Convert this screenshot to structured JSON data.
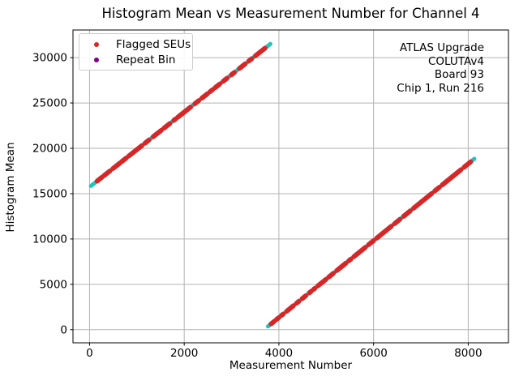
{
  "chart_data": {
    "type": "scatter",
    "title": "Histogram Mean vs Measurement Number for Channel 4",
    "xlabel": "Measurement Number",
    "ylabel": "Histogram Mean",
    "xlim": [
      -350,
      8850
    ],
    "ylim": [
      -1450,
      33050
    ],
    "xticks": [
      0,
      2000,
      4000,
      6000,
      8000
    ],
    "yticks": [
      0,
      5000,
      10000,
      15000,
      20000,
      25000,
      30000
    ],
    "grid": true,
    "colors": {
      "ramp_line": "#22c2bd",
      "flagged_seu": "#d62728",
      "repeat_bin": "#800080",
      "gridline": "#b2b2b2",
      "spine": "#000000"
    },
    "legend": {
      "position": "upper-left",
      "entries": [
        {
          "label": "Flagged SEUs",
          "color": "#d62728"
        },
        {
          "label": "Repeat Bin",
          "color": "#800080"
        }
      ]
    },
    "annotation": {
      "align": "right",
      "lines": [
        "ATLAS Upgrade",
        "COLUTAv4",
        "Board 93",
        "Chip 1, Run 216"
      ]
    },
    "series": [
      {
        "name": "Histogram Mean ramp",
        "type": "line",
        "color": "#22c2bd",
        "segments": [
          {
            "x": [
              30,
              3820
            ],
            "y": [
              15850,
              31510
            ]
          },
          {
            "x": [
              3770,
              8130
            ],
            "y": [
              360,
              18840
            ]
          }
        ]
      },
      {
        "name": "Flagged SEUs",
        "type": "scatter",
        "color": "#d62728",
        "spans": [
          {
            "seg": 0,
            "m": [
              160,
              255
            ]
          },
          {
            "seg": 0,
            "m": [
              300,
              430
            ]
          },
          {
            "seg": 0,
            "m": [
              495,
              635
            ]
          },
          {
            "seg": 0,
            "m": [
              675,
              775
            ]
          },
          {
            "seg": 0,
            "m": [
              830,
              1105
            ]
          },
          {
            "seg": 0,
            "m": [
              1175,
              1255
            ]
          },
          {
            "seg": 0,
            "m": [
              1345,
              1515
            ]
          },
          {
            "seg": 0,
            "m": [
              1575,
              1695
            ]
          },
          {
            "seg": 0,
            "m": [
              1780,
              1825
            ]
          },
          {
            "seg": 0,
            "m": [
              1870,
              2135
            ]
          },
          {
            "seg": 0,
            "m": [
              2225,
              2305
            ]
          },
          {
            "seg": 0,
            "m": [
              2375,
              2490
            ]
          },
          {
            "seg": 0,
            "m": [
              2545,
              2600
            ]
          },
          {
            "seg": 0,
            "m": [
              2655,
              2750
            ]
          },
          {
            "seg": 0,
            "m": [
              2825,
              2905
            ]
          },
          {
            "seg": 0,
            "m": [
              2995,
              3060
            ]
          },
          {
            "seg": 0,
            "m": [
              3165,
              3285
            ]
          },
          {
            "seg": 0,
            "m": [
              3365,
              3425
            ]
          },
          {
            "seg": 0,
            "m": [
              3505,
              3625
            ]
          },
          {
            "seg": 0,
            "m": [
              3655,
              3705
            ]
          },
          {
            "seg": 1,
            "m": [
              3835,
              3900
            ]
          },
          {
            "seg": 1,
            "m": [
              3945,
              4000
            ]
          },
          {
            "seg": 1,
            "m": [
              4055,
              4090
            ]
          },
          {
            "seg": 1,
            "m": [
              4165,
              4305
            ]
          },
          {
            "seg": 1,
            "m": [
              4375,
              4420
            ]
          },
          {
            "seg": 1,
            "m": [
              4495,
              4565
            ]
          },
          {
            "seg": 1,
            "m": [
              4645,
              4685
            ]
          },
          {
            "seg": 1,
            "m": [
              4735,
              4760
            ]
          },
          {
            "seg": 1,
            "m": [
              4825,
              4995
            ]
          },
          {
            "seg": 1,
            "m": [
              5055,
              5150
            ]
          },
          {
            "seg": 1,
            "m": [
              5225,
              5415
            ]
          },
          {
            "seg": 1,
            "m": [
              5475,
              5520
            ]
          },
          {
            "seg": 1,
            "m": [
              5585,
              5825
            ]
          },
          {
            "seg": 1,
            "m": [
              5895,
              6000
            ]
          },
          {
            "seg": 1,
            "m": [
              6065,
              6375
            ]
          },
          {
            "seg": 1,
            "m": [
              6445,
              6555
            ]
          },
          {
            "seg": 1,
            "m": [
              6635,
              6775
            ]
          },
          {
            "seg": 1,
            "m": [
              6845,
              7225
            ]
          },
          {
            "seg": 1,
            "m": [
              7295,
              7390
            ]
          },
          {
            "seg": 1,
            "m": [
              7455,
              7845
            ]
          },
          {
            "seg": 1,
            "m": [
              7915,
              8050
            ]
          }
        ]
      },
      {
        "name": "Repeat Bin",
        "type": "scatter",
        "color": "#800080",
        "points": []
      }
    ]
  }
}
